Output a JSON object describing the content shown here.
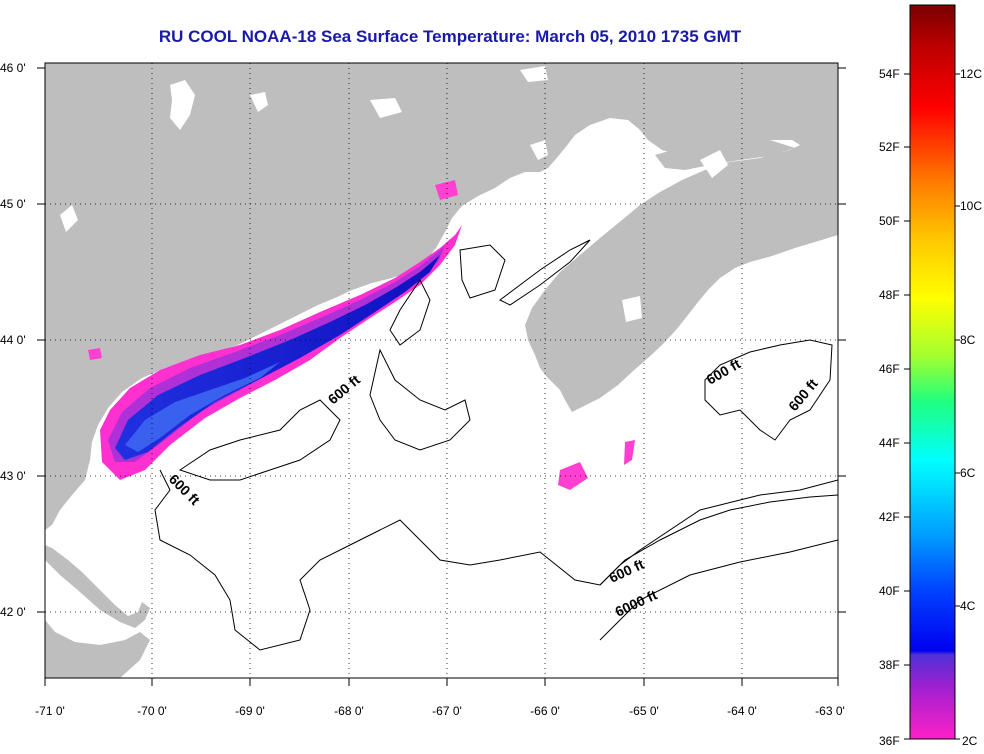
{
  "title": "RU COOL  NOAA-18  Sea Surface Temperature:  March 05, 2010 1735 GMT",
  "map": {
    "lat_ticks": [
      "46 0'",
      "45 0'",
      "44 0'",
      "43 0'",
      "42 0'"
    ],
    "lon_ticks": [
      "-71 0'",
      "-70 0'",
      "-69 0'",
      "-68 0'",
      "-67 0'",
      "-66 0'",
      "-65 0'",
      "-64 0'",
      "-63 0'"
    ],
    "contour_labels": [
      "600 ft",
      "600 ft",
      "600 ft",
      "600 ft",
      "600 ft",
      "6000 ft"
    ],
    "land_color": "#bebebe",
    "ocean_color": "#ffffff"
  },
  "colorbar": {
    "fahrenheit_labels": [
      "54F",
      "52F",
      "50F",
      "48F",
      "46F",
      "44F",
      "42F",
      "40F",
      "38F",
      "36F"
    ],
    "celsius_labels": [
      "12C",
      "10C",
      "8C",
      "6C",
      "4C",
      "2C"
    ],
    "colors": [
      "#8b0000",
      "#ff0000",
      "#ff8c00",
      "#ffff00",
      "#00ff00",
      "#00ffff",
      "#0064ff",
      "#0000ff",
      "#8000c0",
      "#ff20c0"
    ]
  }
}
